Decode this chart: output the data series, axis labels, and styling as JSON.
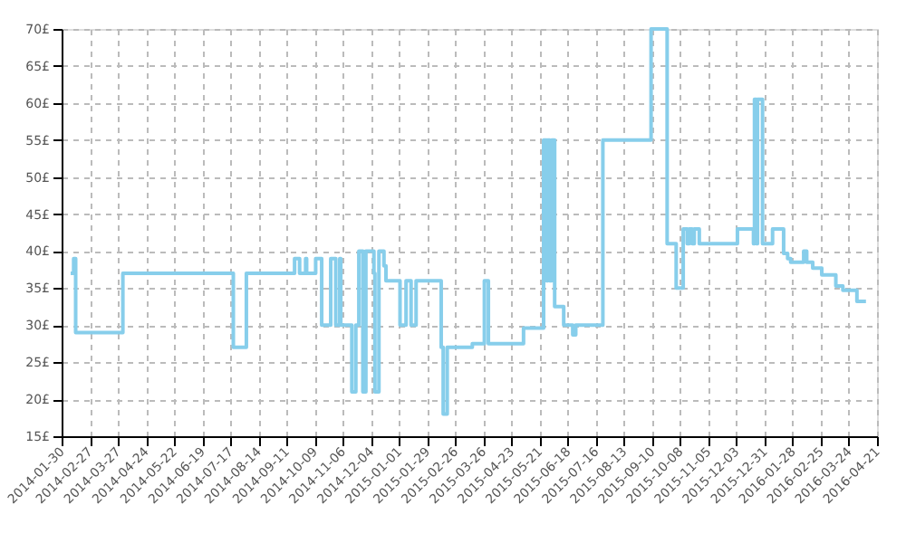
{
  "chart_data": {
    "type": "step",
    "grid": true,
    "line_style": "solid",
    "marker": "none",
    "xlim": [
      "2014-01-30",
      "2016-04-21"
    ],
    "xticks": [
      "2014-01-30",
      "2014-02-27",
      "2014-03-27",
      "2014-04-24",
      "2014-05-22",
      "2014-06-19",
      "2014-07-17",
      "2014-08-14",
      "2014-09-11",
      "2014-10-09",
      "2014-11-06",
      "2014-12-04",
      "2015-01-01",
      "2015-01-29",
      "2015-02-26",
      "2015-03-26",
      "2015-04-23",
      "2015-05-21",
      "2015-06-18",
      "2015-07-16",
      "2015-08-13",
      "2015-09-10",
      "2015-10-08",
      "2015-11-05",
      "2015-12-03",
      "2015-12-31",
      "2016-01-28",
      "2016-02-25",
      "2016-03-24",
      "2016-04-21"
    ],
    "ylim": [
      15,
      70
    ],
    "yticks": [
      {
        "value": 15,
        "label": "15£"
      },
      {
        "value": 20,
        "label": "20£"
      },
      {
        "value": 25,
        "label": "25£"
      },
      {
        "value": 30,
        "label": "30£"
      },
      {
        "value": 35,
        "label": "35£"
      },
      {
        "value": 40,
        "label": "40£"
      },
      {
        "value": 45,
        "label": "45£"
      },
      {
        "value": 50,
        "label": "50£"
      },
      {
        "value": 55,
        "label": "55£"
      },
      {
        "value": 60,
        "label": "60£"
      },
      {
        "value": 65,
        "label": "65£"
      },
      {
        "value": 70,
        "label": "70£"
      }
    ],
    "series": [
      {
        "color": "#87ceeb",
        "x": [
          "2014-02-08",
          "2014-02-11",
          "2014-02-13",
          "2014-04-01",
          "2014-07-20",
          "2014-08-02",
          "2014-09-19",
          "2014-09-24",
          "2014-09-30",
          "2014-10-01",
          "2014-10-10",
          "2014-10-16",
          "2014-10-25",
          "2014-10-30",
          "2014-11-03",
          "2014-11-04",
          "2014-11-15",
          "2014-11-19",
          "2014-11-22",
          "2014-11-26",
          "2014-11-29",
          "2014-12-07",
          "2014-12-08",
          "2014-12-12",
          "2014-12-17",
          "2014-12-19",
          "2015-01-02",
          "2015-01-08",
          "2015-01-13",
          "2015-01-18",
          "2015-02-12",
          "2015-02-14",
          "2015-02-18",
          "2015-03-15",
          "2015-03-27",
          "2015-03-31",
          "2015-05-05",
          "2015-05-25",
          "2015-05-28",
          "2015-05-29",
          "2015-05-31",
          "2015-06-02",
          "2015-06-05",
          "2015-06-14",
          "2015-06-23",
          "2015-06-26",
          "2015-07-23",
          "2015-09-09",
          "2015-09-25",
          "2015-10-04",
          "2015-10-11",
          "2015-10-15",
          "2015-10-17",
          "2015-10-20",
          "2015-10-22",
          "2015-10-27",
          "2015-12-04",
          "2015-12-20",
          "2015-12-21",
          "2015-12-23",
          "2015-12-24",
          "2015-12-29",
          "2016-01-08",
          "2016-01-19",
          "2016-01-23",
          "2016-01-26",
          "2016-02-08",
          "2016-02-11",
          "2016-02-17",
          "2016-02-26",
          "2016-03-11",
          "2016-03-18",
          "2016-04-01",
          "2016-04-10"
        ],
        "values": [
          37,
          39,
          29,
          37,
          27,
          37,
          39,
          37,
          39,
          37,
          39,
          30,
          39,
          30,
          39,
          30,
          21,
          30,
          40,
          21,
          40,
          37,
          21,
          40,
          38,
          36,
          30,
          36,
          30,
          36,
          27,
          18,
          27,
          27.5,
          36,
          27.5,
          29.6,
          55,
          36,
          55,
          36,
          55,
          32.5,
          30,
          28.7,
          30,
          55,
          70,
          41,
          35,
          43,
          41,
          43,
          41,
          43,
          41,
          43,
          41,
          60.5,
          41,
          60.5,
          41,
          43,
          39.7,
          39,
          38.5,
          40,
          38.5,
          37.7,
          36.8,
          35.3,
          34.7,
          33.2,
          33.2
        ]
      }
    ]
  }
}
